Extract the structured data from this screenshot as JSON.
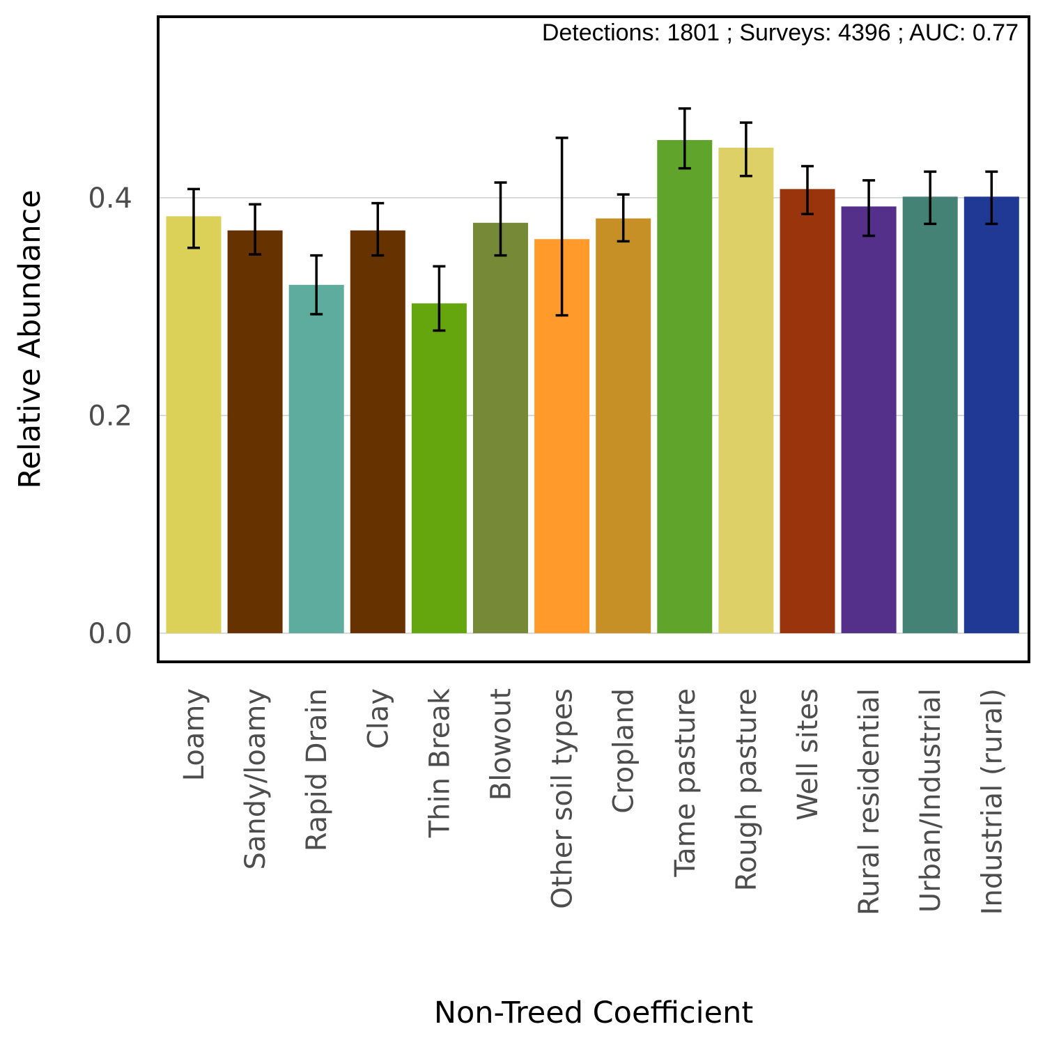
{
  "chart_data": {
    "type": "bar",
    "annotation": "Detections: 1801 ; Surveys: 4396 ; AUC: 0.77",
    "xlabel": "Non-Treed Coefficient",
    "ylabel": "Relative Abundance",
    "ylim": [
      -0.025,
      0.565
    ],
    "yticks": [
      {
        "value": 0.0,
        "label": "0.0"
      },
      {
        "value": 0.2,
        "label": "0.2"
      },
      {
        "value": 0.4,
        "label": "0.4"
      }
    ],
    "grid": true,
    "categories": [
      "Loamy",
      "Sandy/loamy",
      "Rapid Drain",
      "Clay",
      "Thin Break",
      "Blowout",
      "Other soil types",
      "Cropland",
      "Tame pasture",
      "Rough pasture",
      "Well sites",
      "Rural residential",
      "Urban/Industrial",
      "Industrial (rural)"
    ],
    "values": [
      0.383,
      0.37,
      0.32,
      0.37,
      0.303,
      0.377,
      0.362,
      0.381,
      0.453,
      0.446,
      0.408,
      0.392,
      0.401,
      0.401
    ],
    "lower": [
      0.354,
      0.348,
      0.293,
      0.347,
      0.278,
      0.347,
      0.292,
      0.36,
      0.427,
      0.42,
      0.385,
      0.365,
      0.376,
      0.376
    ],
    "upper": [
      0.408,
      0.394,
      0.347,
      0.395,
      0.337,
      0.414,
      0.455,
      0.403,
      0.482,
      0.469,
      0.429,
      0.416,
      0.424,
      0.424
    ],
    "colors": [
      "#dbd159",
      "#663300",
      "#5eac9e",
      "#663300",
      "#65a60f",
      "#758936",
      "#ff9a2b",
      "#c79027",
      "#61a42c",
      "#ddd066",
      "#99340d",
      "#54308b",
      "#448276",
      "#1f3994"
    ]
  }
}
